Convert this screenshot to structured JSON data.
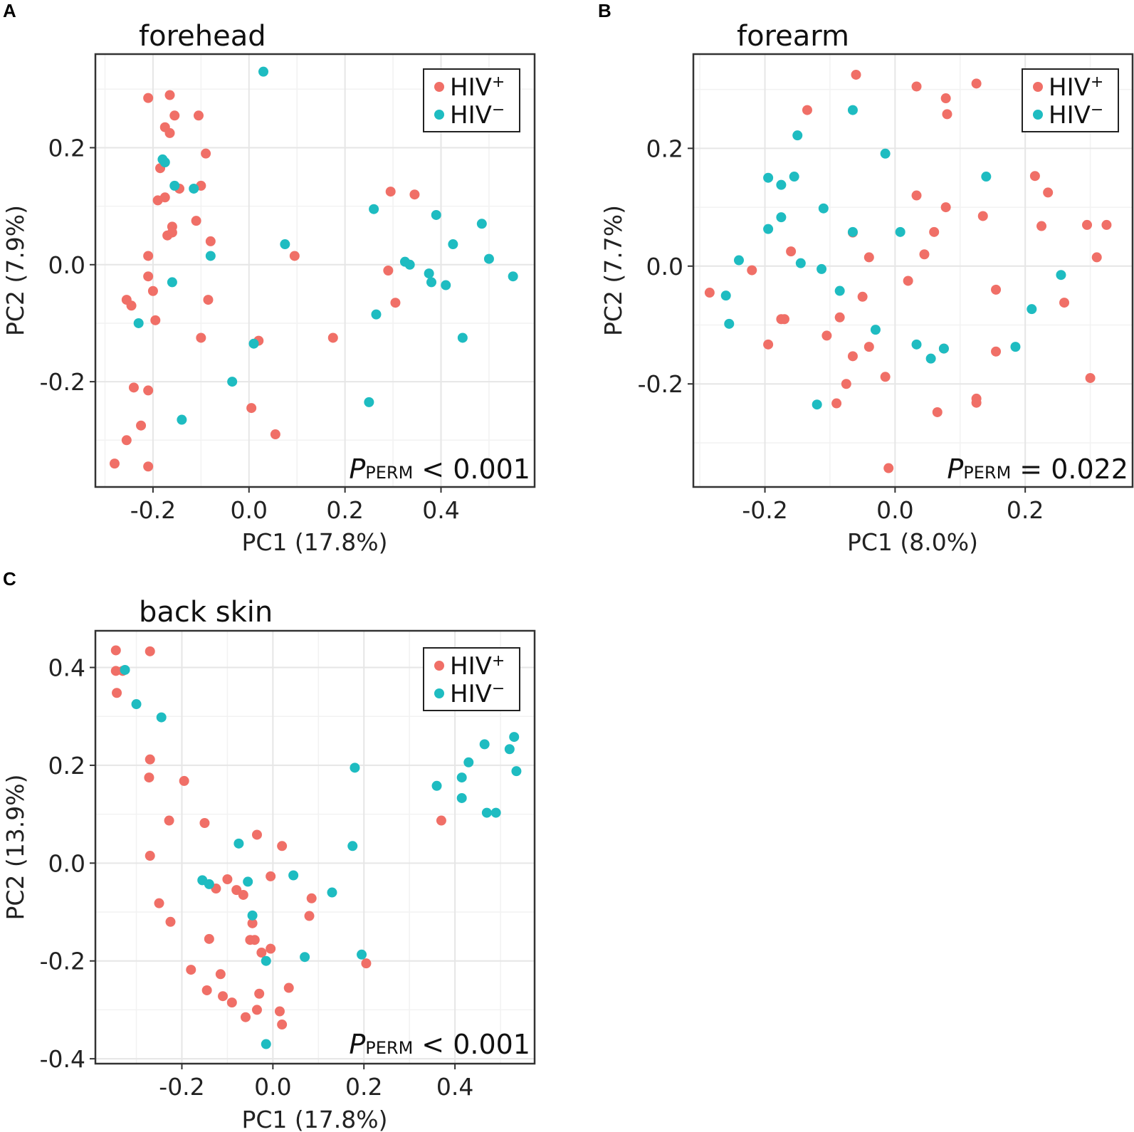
{
  "colors": {
    "hiv_pos": "#F06F67",
    "hiv_neg": "#1EBCC1"
  },
  "legend": {
    "pos_base": "HIV",
    "pos_sup": "+",
    "neg_base": "HIV",
    "neg_sup": "−"
  },
  "chart_data": [
    {
      "panel": "A",
      "type": "scatter",
      "title": "forehead",
      "xlabel": "PC1 (17.8%)",
      "ylabel": "PC2 (7.9%)",
      "xlim": [
        -0.32,
        0.595
      ],
      "ylim": [
        -0.38,
        0.36
      ],
      "xticks": [
        -0.2,
        0.0,
        0.2,
        0.4
      ],
      "xtick_labels": [
        "-0.2",
        "0.0",
        "0.2",
        "0.4"
      ],
      "yticks": [
        -0.2,
        0.0,
        0.2
      ],
      "ytick_labels": [
        "-0.2",
        "0.0",
        "0.2"
      ],
      "legend_position": "top-right",
      "annotation": {
        "p_label": "P",
        "p_sub": "PERM",
        "p_value": "< 0.001"
      },
      "series": [
        {
          "name": "HIV+",
          "points": [
            [
              -0.21,
              0.285
            ],
            [
              -0.165,
              0.29
            ],
            [
              -0.155,
              0.255
            ],
            [
              -0.105,
              0.255
            ],
            [
              -0.175,
              0.235
            ],
            [
              -0.165,
              0.225
            ],
            [
              -0.09,
              0.19
            ],
            [
              -0.185,
              0.165
            ],
            [
              -0.145,
              0.13
            ],
            [
              -0.1,
              0.135
            ],
            [
              -0.175,
              0.115
            ],
            [
              -0.19,
              0.11
            ],
            [
              -0.11,
              0.075
            ],
            [
              -0.16,
              0.065
            ],
            [
              -0.17,
              0.05
            ],
            [
              -0.16,
              0.055
            ],
            [
              -0.08,
              0.04
            ],
            [
              -0.21,
              0.015
            ],
            [
              -0.21,
              -0.02
            ],
            [
              -0.2,
              -0.045
            ],
            [
              -0.255,
              -0.06
            ],
            [
              -0.245,
              -0.07
            ],
            [
              -0.085,
              -0.06
            ],
            [
              -0.195,
              -0.095
            ],
            [
              -0.1,
              -0.125
            ],
            [
              -0.24,
              -0.21
            ],
            [
              -0.21,
              -0.215
            ],
            [
              -0.225,
              -0.275
            ],
            [
              -0.255,
              -0.3
            ],
            [
              -0.28,
              -0.34
            ],
            [
              -0.21,
              -0.345
            ],
            [
              0.295,
              0.125
            ],
            [
              0.345,
              0.12
            ],
            [
              0.095,
              0.015
            ],
            [
              0.29,
              -0.01
            ],
            [
              0.305,
              -0.065
            ],
            [
              0.175,
              -0.125
            ],
            [
              0.02,
              -0.13
            ],
            [
              0.005,
              -0.245
            ],
            [
              0.055,
              -0.29
            ]
          ]
        },
        {
          "name": "HIV−",
          "points": [
            [
              0.03,
              0.33
            ],
            [
              -0.18,
              0.18
            ],
            [
              -0.175,
              0.175
            ],
            [
              -0.155,
              0.135
            ],
            [
              -0.115,
              0.13
            ],
            [
              -0.08,
              0.015
            ],
            [
              -0.16,
              -0.03
            ],
            [
              -0.23,
              -0.1
            ],
            [
              -0.14,
              -0.265
            ],
            [
              -0.035,
              -0.2
            ],
            [
              0.01,
              -0.135
            ],
            [
              0.075,
              0.035
            ],
            [
              0.26,
              0.095
            ],
            [
              0.39,
              0.085
            ],
            [
              0.485,
              0.07
            ],
            [
              0.425,
              0.035
            ],
            [
              0.5,
              0.01
            ],
            [
              0.325,
              0.005
            ],
            [
              0.335,
              0.0
            ],
            [
              0.375,
              -0.015
            ],
            [
              0.55,
              -0.02
            ],
            [
              0.38,
              -0.03
            ],
            [
              0.41,
              -0.035
            ],
            [
              0.265,
              -0.085
            ],
            [
              0.445,
              -0.125
            ],
            [
              0.25,
              -0.235
            ]
          ]
        }
      ]
    },
    {
      "panel": "B",
      "type": "scatter",
      "title": "forearm",
      "xlabel": "PC1 (8.0%)",
      "ylabel": "PC2 (7.7%)",
      "xlim": [
        -0.31,
        0.365
      ],
      "ylim": [
        -0.375,
        0.36
      ],
      "xticks": [
        -0.2,
        0.0,
        0.2
      ],
      "xtick_labels": [
        "-0.2",
        "0.0",
        "0.2"
      ],
      "yticks": [
        -0.2,
        0.0,
        0.2
      ],
      "ytick_labels": [
        "-0.2",
        "0.0",
        "0.2"
      ],
      "legend_position": "top-right",
      "annotation": {
        "p_label": "P",
        "p_sub": "PERM",
        "p_value": "= 0.022"
      },
      "series": [
        {
          "name": "HIV+",
          "points": [
            [
              -0.06,
              0.325
            ],
            [
              0.033,
              0.305
            ],
            [
              0.125,
              0.31
            ],
            [
              0.078,
              0.285
            ],
            [
              0.08,
              0.258
            ],
            [
              -0.135,
              0.265
            ],
            [
              0.215,
              0.153
            ],
            [
              0.235,
              0.125
            ],
            [
              0.033,
              0.12
            ],
            [
              0.078,
              0.1
            ],
            [
              0.135,
              0.085
            ],
            [
              0.295,
              0.07
            ],
            [
              0.325,
              0.07
            ],
            [
              0.225,
              0.068
            ],
            [
              -0.065,
              0.057
            ],
            [
              0.06,
              0.058
            ],
            [
              -0.16,
              0.025
            ],
            [
              0.045,
              0.02
            ],
            [
              -0.04,
              0.015
            ],
            [
              0.31,
              0.015
            ],
            [
              -0.22,
              -0.007
            ],
            [
              -0.285,
              -0.045
            ],
            [
              0.02,
              -0.025
            ],
            [
              0.155,
              -0.04
            ],
            [
              -0.05,
              -0.052
            ],
            [
              0.26,
              -0.062
            ],
            [
              -0.175,
              -0.09
            ],
            [
              -0.17,
              -0.09
            ],
            [
              -0.085,
              -0.087
            ],
            [
              -0.105,
              -0.118
            ],
            [
              -0.195,
              -0.133
            ],
            [
              -0.04,
              -0.137
            ],
            [
              0.075,
              -0.14
            ],
            [
              0.155,
              -0.145
            ],
            [
              -0.065,
              -0.153
            ],
            [
              -0.015,
              -0.188
            ],
            [
              0.3,
              -0.19
            ],
            [
              -0.075,
              -0.2
            ],
            [
              0.125,
              -0.225
            ],
            [
              0.125,
              -0.232
            ],
            [
              -0.09,
              -0.233
            ],
            [
              0.065,
              -0.248
            ],
            [
              -0.01,
              -0.343
            ]
          ]
        },
        {
          "name": "HIV−",
          "points": [
            [
              -0.065,
              0.265
            ],
            [
              -0.15,
              0.222
            ],
            [
              -0.015,
              0.191
            ],
            [
              -0.195,
              0.15
            ],
            [
              -0.155,
              0.152
            ],
            [
              0.14,
              0.152
            ],
            [
              -0.175,
              0.138
            ],
            [
              -0.11,
              0.098
            ],
            [
              -0.175,
              0.083
            ],
            [
              -0.195,
              0.063
            ],
            [
              -0.065,
              0.058
            ],
            [
              0.008,
              0.058
            ],
            [
              -0.24,
              0.01
            ],
            [
              -0.145,
              0.005
            ],
            [
              -0.113,
              -0.005
            ],
            [
              0.255,
              -0.015
            ],
            [
              -0.26,
              -0.05
            ],
            [
              -0.085,
              -0.042
            ],
            [
              0.21,
              -0.073
            ],
            [
              -0.255,
              -0.098
            ],
            [
              -0.03,
              -0.108
            ],
            [
              0.033,
              -0.133
            ],
            [
              0.075,
              -0.14
            ],
            [
              0.185,
              -0.137
            ],
            [
              0.055,
              -0.157
            ],
            [
              -0.12,
              -0.235
            ]
          ]
        }
      ]
    },
    {
      "panel": "C",
      "type": "scatter",
      "title": "back skin",
      "xlabel": "PC1 (17.8%)",
      "ylabel": "PC2 (13.9%)",
      "xlim": [
        -0.39,
        0.575
      ],
      "ylim": [
        -0.41,
        0.475
      ],
      "xticks": [
        -0.2,
        0.0,
        0.2,
        0.4
      ],
      "xtick_labels": [
        "-0.2",
        "0.0",
        "0.2",
        "0.4"
      ],
      "yticks": [
        -0.4,
        -0.2,
        0.0,
        0.2,
        0.4
      ],
      "ytick_labels": [
        "-0.4",
        "-0.2",
        "0.0",
        "0.2",
        "0.4"
      ],
      "legend_position": "top-right",
      "annotation": {
        "p_label": "P",
        "p_sub": "PERM",
        "p_value": "< 0.001"
      },
      "series": [
        {
          "name": "HIV+",
          "points": [
            [
              -0.345,
              0.435
            ],
            [
              -0.27,
              0.433
            ],
            [
              -0.345,
              0.393
            ],
            [
              -0.33,
              0.393
            ],
            [
              -0.343,
              0.348
            ],
            [
              -0.27,
              0.212
            ],
            [
              -0.272,
              0.175
            ],
            [
              -0.195,
              0.168
            ],
            [
              -0.228,
              0.087
            ],
            [
              -0.15,
              0.082
            ],
            [
              -0.035,
              0.058
            ],
            [
              0.02,
              0.035
            ],
            [
              -0.27,
              0.015
            ],
            [
              -0.005,
              -0.027
            ],
            [
              -0.1,
              -0.033
            ],
            [
              -0.125,
              -0.052
            ],
            [
              -0.08,
              -0.055
            ],
            [
              -0.065,
              -0.065
            ],
            [
              0.085,
              -0.072
            ],
            [
              -0.25,
              -0.082
            ],
            [
              0.08,
              -0.108
            ],
            [
              -0.045,
              -0.123
            ],
            [
              -0.225,
              -0.12
            ],
            [
              -0.14,
              -0.155
            ],
            [
              -0.05,
              -0.157
            ],
            [
              -0.04,
              -0.157
            ],
            [
              -0.005,
              -0.175
            ],
            [
              -0.025,
              -0.183
            ],
            [
              0.205,
              -0.205
            ],
            [
              -0.18,
              -0.218
            ],
            [
              -0.115,
              -0.227
            ],
            [
              -0.145,
              -0.26
            ],
            [
              0.035,
              -0.255
            ],
            [
              -0.03,
              -0.267
            ],
            [
              -0.11,
              -0.272
            ],
            [
              -0.09,
              -0.285
            ],
            [
              -0.035,
              -0.3
            ],
            [
              0.015,
              -0.303
            ],
            [
              -0.06,
              -0.315
            ],
            [
              0.02,
              -0.33
            ],
            [
              0.37,
              0.087
            ]
          ]
        },
        {
          "name": "HIV−",
          "points": [
            [
              -0.325,
              0.395
            ],
            [
              -0.3,
              0.325
            ],
            [
              -0.245,
              0.298
            ],
            [
              0.53,
              0.258
            ],
            [
              0.465,
              0.243
            ],
            [
              0.52,
              0.233
            ],
            [
              0.43,
              0.206
            ],
            [
              0.18,
              0.195
            ],
            [
              0.535,
              0.188
            ],
            [
              0.415,
              0.175
            ],
            [
              0.36,
              0.158
            ],
            [
              0.415,
              0.133
            ],
            [
              0.47,
              0.103
            ],
            [
              0.49,
              0.103
            ],
            [
              -0.075,
              0.04
            ],
            [
              0.175,
              0.035
            ],
            [
              0.045,
              -0.025
            ],
            [
              -0.155,
              -0.035
            ],
            [
              -0.055,
              -0.038
            ],
            [
              -0.14,
              -0.043
            ],
            [
              0.13,
              -0.06
            ],
            [
              -0.045,
              -0.107
            ],
            [
              0.195,
              -0.187
            ],
            [
              0.07,
              -0.192
            ],
            [
              -0.015,
              -0.2
            ],
            [
              -0.015,
              -0.37
            ]
          ]
        }
      ]
    }
  ]
}
